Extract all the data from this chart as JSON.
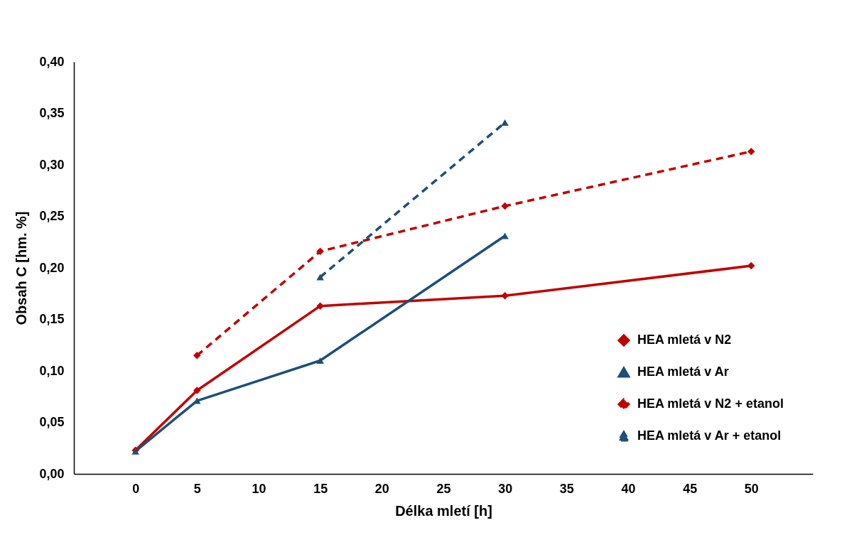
{
  "chart_data": {
    "type": "line",
    "xlabel": "Délka mletí [h]",
    "ylabel": "Obsah C [hm. %]",
    "xlim": [
      -5,
      55
    ],
    "xticks": [
      0,
      5,
      10,
      15,
      20,
      25,
      30,
      35,
      40,
      45,
      50
    ],
    "ylim": [
      0,
      0.4
    ],
    "yticks": [
      {
        "value": 0,
        "label": "0,00"
      },
      {
        "value": 0.05,
        "label": "0,05"
      },
      {
        "value": 0.1,
        "label": "0,10"
      },
      {
        "value": 0.15,
        "label": "0,15"
      },
      {
        "value": 0.2,
        "label": "0,20"
      },
      {
        "value": 0.25,
        "label": "0,25"
      },
      {
        "value": 0.3,
        "label": "0,30"
      },
      {
        "value": 0.35,
        "label": "0,35"
      },
      {
        "value": 0.4,
        "label": "0,40"
      }
    ],
    "grid": false,
    "legend": "bottom right",
    "series": [
      {
        "name": "HEA mletá v N2",
        "color": "#c00000",
        "marker": "diamond",
        "line_style": "solid",
        "x": [
          0,
          5,
          15,
          30,
          50
        ],
        "values": [
          0.023,
          0.081,
          0.163,
          0.173,
          0.202
        ]
      },
      {
        "name": "HEA mletá v Ar",
        "color": "#1f4e79",
        "marker": "triangle",
        "line_style": "solid",
        "x": [
          0,
          5,
          15,
          30
        ],
        "values": [
          0.022,
          0.071,
          0.11,
          0.231
        ]
      },
      {
        "name": "HEA mletá v N2 + etanol",
        "color": "#c00000",
        "marker": "diamond",
        "line_style": "dashed",
        "x": [
          5,
          15,
          30,
          50
        ],
        "values": [
          0.115,
          0.216,
          0.26,
          0.313
        ]
      },
      {
        "name": "HEA mletá v Ar + etanol",
        "color": "#1f4e79",
        "marker": "triangle",
        "line_style": "dashed",
        "x": [
          15,
          30
        ],
        "values": [
          0.191,
          0.341
        ]
      }
    ]
  }
}
